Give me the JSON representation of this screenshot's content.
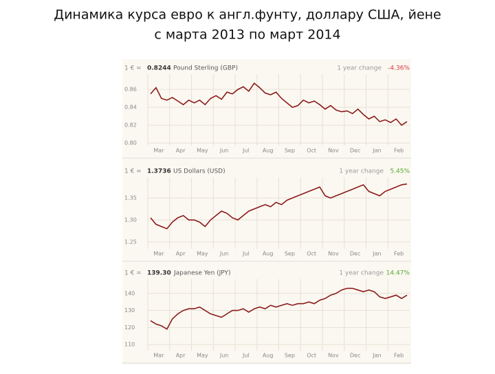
{
  "title": "Динамика курса евро к англ.фунту, доллару США, йене",
  "subtitle": "с марта 2013 по март 2014",
  "chart_data": [
    {
      "type": "line",
      "prefix": "1 € =",
      "current": "0.8244",
      "currency": "Pound Sterling (GBP)",
      "change_label": "1 year change",
      "change": "-4.36%",
      "change_color": "#d9363e",
      "color": "#8b1a1a",
      "months": [
        "Mar",
        "Apr",
        "May",
        "Jun",
        "Jul",
        "Aug",
        "Sep",
        "Oct",
        "Nov",
        "Dec",
        "Jan",
        "Feb"
      ],
      "values": [
        0.855,
        0.862,
        0.85,
        0.848,
        0.851,
        0.847,
        0.843,
        0.848,
        0.845,
        0.848,
        0.843,
        0.85,
        0.853,
        0.849,
        0.857,
        0.855,
        0.86,
        0.863,
        0.858,
        0.867,
        0.862,
        0.856,
        0.854,
        0.857,
        0.85,
        0.845,
        0.84,
        0.842,
        0.848,
        0.845,
        0.847,
        0.843,
        0.838,
        0.842,
        0.837,
        0.835,
        0.836,
        0.833,
        0.838,
        0.832,
        0.827,
        0.83,
        0.824,
        0.826,
        0.823,
        0.827,
        0.82,
        0.824
      ],
      "ylim": [
        0.797,
        0.877
      ],
      "yticks": [
        {
          "value": 0.8,
          "label": "0.80"
        },
        {
          "value": 0.82,
          "label": "0.82"
        },
        {
          "value": 0.84,
          "label": "0.84"
        },
        {
          "value": 0.86,
          "label": "0.86"
        }
      ],
      "grid": true
    },
    {
      "type": "line",
      "prefix": "1 € =",
      "current": "1.3736",
      "currency": "US Dollars (USD)",
      "change_label": "1 year change",
      "change": "5.45%",
      "change_color": "#5aa832",
      "color": "#8b1a1a",
      "months": [
        "Mar",
        "Apr",
        "May",
        "Jun",
        "Jul",
        "Aug",
        "Sep",
        "Oct",
        "Nov",
        "Dec",
        "Jan",
        "Feb"
      ],
      "values": [
        1.305,
        1.29,
        1.285,
        1.28,
        1.295,
        1.305,
        1.31,
        1.3,
        1.3,
        1.295,
        1.285,
        1.3,
        1.31,
        1.32,
        1.315,
        1.305,
        1.3,
        1.31,
        1.32,
        1.325,
        1.33,
        1.335,
        1.33,
        1.34,
        1.335,
        1.345,
        1.35,
        1.355,
        1.36,
        1.365,
        1.37,
        1.375,
        1.355,
        1.35,
        1.355,
        1.36,
        1.365,
        1.37,
        1.375,
        1.38,
        1.365,
        1.36,
        1.355,
        1.365,
        1.37,
        1.375,
        1.38,
        1.382
      ],
      "ylim": [
        1.234,
        1.397
      ],
      "yticks": [
        {
          "value": 1.25,
          "label": "1.25"
        },
        {
          "value": 1.3,
          "label": "1.30"
        },
        {
          "value": 1.35,
          "label": "1.35"
        }
      ],
      "grid": true
    },
    {
      "type": "line",
      "prefix": "1 € =",
      "current": "139.30",
      "currency": "Japanese Yen (JPY)",
      "change_label": "1 year change",
      "change": "14.47%",
      "change_color": "#5aa832",
      "color": "#8b1a1a",
      "months": [
        "Mar",
        "Apr",
        "May",
        "Jun",
        "Jul",
        "Aug",
        "Sep",
        "Oct",
        "Nov",
        "Dec",
        "Jan",
        "Feb"
      ],
      "values": [
        124,
        122,
        121,
        119,
        125,
        128,
        130,
        131,
        131,
        132,
        130,
        128,
        127,
        126,
        128,
        130,
        130,
        131,
        129,
        131,
        132,
        131,
        133,
        132,
        133,
        134,
        133,
        134,
        134,
        135,
        134,
        136,
        137,
        139,
        140,
        142,
        143,
        143,
        142,
        141,
        142,
        141,
        138,
        137,
        138,
        139,
        137,
        139
      ],
      "ylim": [
        106.4,
        148.4
      ],
      "yticks": [
        110,
        120,
        130,
        140
      ],
      "grid": true
    }
  ]
}
